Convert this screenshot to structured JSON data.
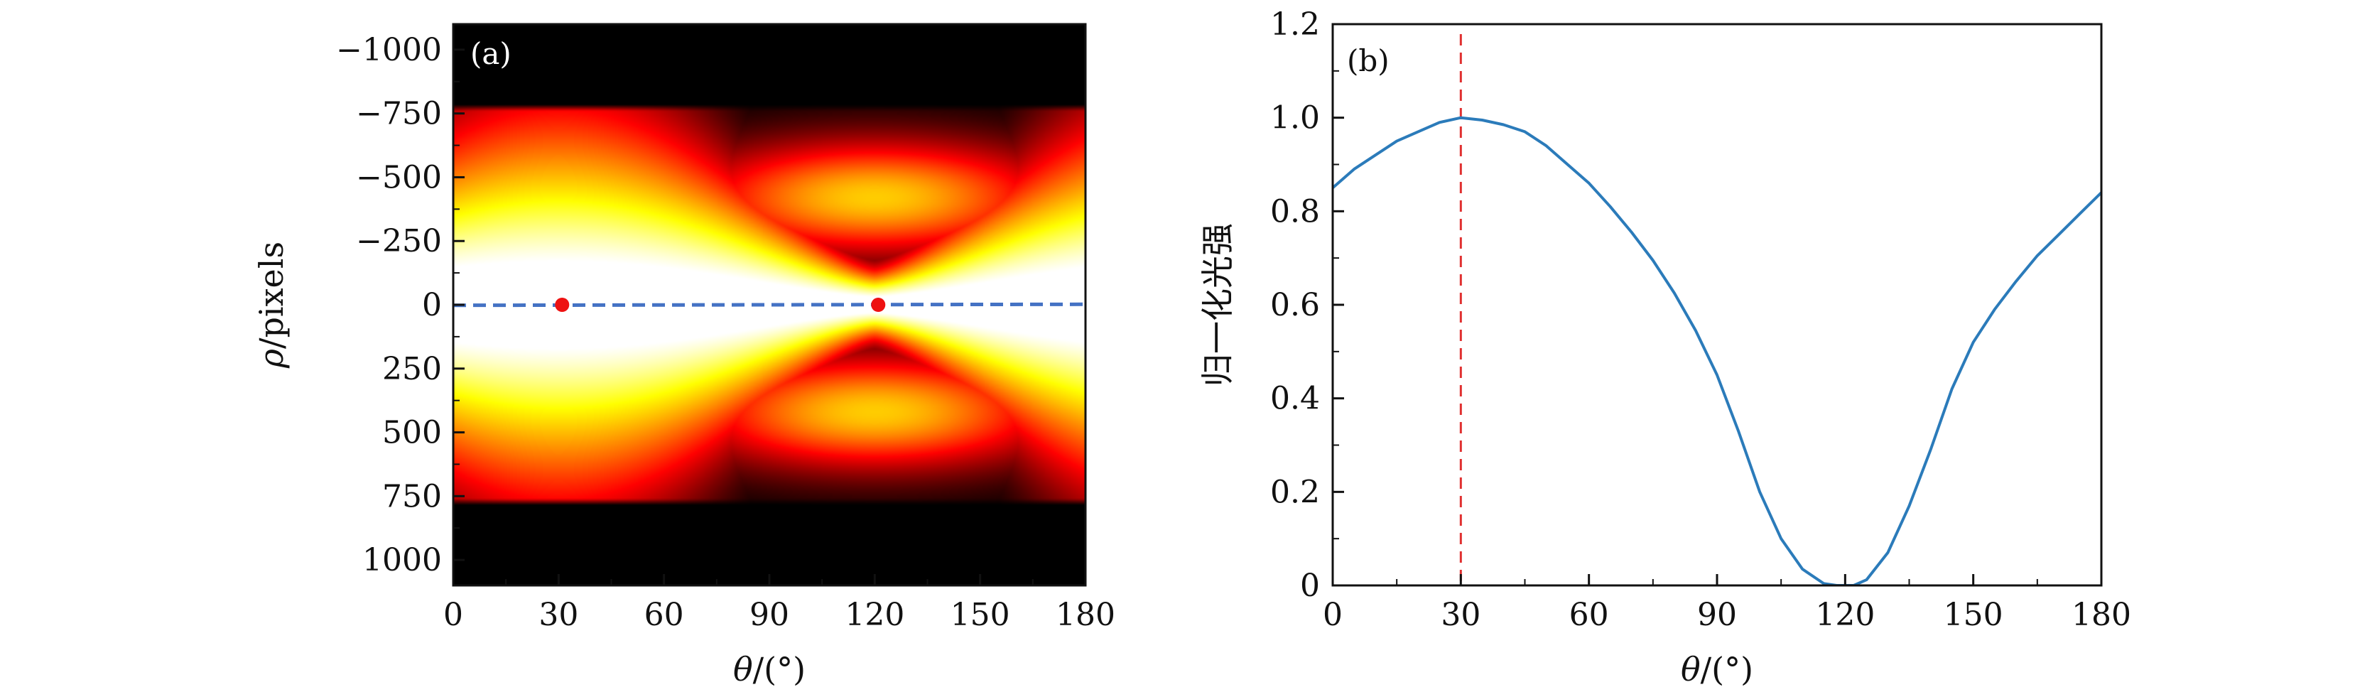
{
  "chart_data": [
    {
      "panel": "(a)",
      "type": "heatmap",
      "colormap": "hot",
      "xlabel_var": "θ",
      "xlabel_unit": "/(°)",
      "ylabel_var": "ρ",
      "ylabel_unit": "/pixels",
      "xlim": [
        0,
        180
      ],
      "ylim": [
        -1100,
        1100
      ],
      "y_inverted": true,
      "xticks": [
        0,
        30,
        60,
        90,
        120,
        150,
        180
      ],
      "yticks": [
        -1000,
        -750,
        -500,
        -250,
        0,
        250,
        500,
        750,
        1000
      ],
      "ytick_labels": [
        "−1000",
        "−750",
        "−500",
        "−250",
        "0",
        "250",
        "500",
        "750",
        "1000"
      ],
      "dashed_line": {
        "color": "#4472c4",
        "points": [
          [
            0,
            2
          ],
          [
            180,
            -2
          ]
        ]
      },
      "markers": [
        {
          "theta": 31,
          "rho": 0,
          "color": "#ee1111"
        },
        {
          "theta": 121,
          "rho": 0,
          "color": "#ee1111"
        }
      ]
    },
    {
      "panel": "(b)",
      "type": "line",
      "xlabel_var": "θ",
      "xlabel_unit": "/(°)",
      "ylabel": "归一化光强",
      "xlim": [
        0,
        180
      ],
      "ylim": [
        0,
        1.2
      ],
      "xticks": [
        0,
        30,
        60,
        90,
        120,
        150,
        180
      ],
      "yticks": [
        0,
        0.2,
        0.4,
        0.6,
        0.8,
        1.0,
        1.2
      ],
      "ytick_labels": [
        "0",
        "0.2",
        "0.4",
        "0.6",
        "0.8",
        "1.0",
        "1.2"
      ],
      "vline": {
        "x": 30,
        "color": "#e03030",
        "style": "dashed"
      },
      "series": [
        {
          "color": "#2b7bba",
          "x": [
            0,
            5,
            10,
            15,
            20,
            25,
            30,
            35,
            40,
            45,
            50,
            55,
            60,
            65,
            70,
            75,
            80,
            85,
            90,
            95,
            100,
            105,
            110,
            115,
            118,
            120,
            122,
            125,
            130,
            135,
            140,
            145,
            150,
            155,
            160,
            165,
            170,
            175,
            180
          ],
          "y": [
            0.85,
            0.89,
            0.92,
            0.95,
            0.97,
            0.99,
            1.0,
            0.995,
            0.985,
            0.97,
            0.94,
            0.9,
            0.86,
            0.81,
            0.755,
            0.695,
            0.625,
            0.545,
            0.45,
            0.33,
            0.2,
            0.1,
            0.035,
            0.004,
            0.0,
            0.0,
            0.0,
            0.012,
            0.07,
            0.17,
            0.29,
            0.42,
            0.52,
            0.59,
            0.65,
            0.705,
            0.75,
            0.795,
            0.84
          ]
        }
      ]
    }
  ]
}
